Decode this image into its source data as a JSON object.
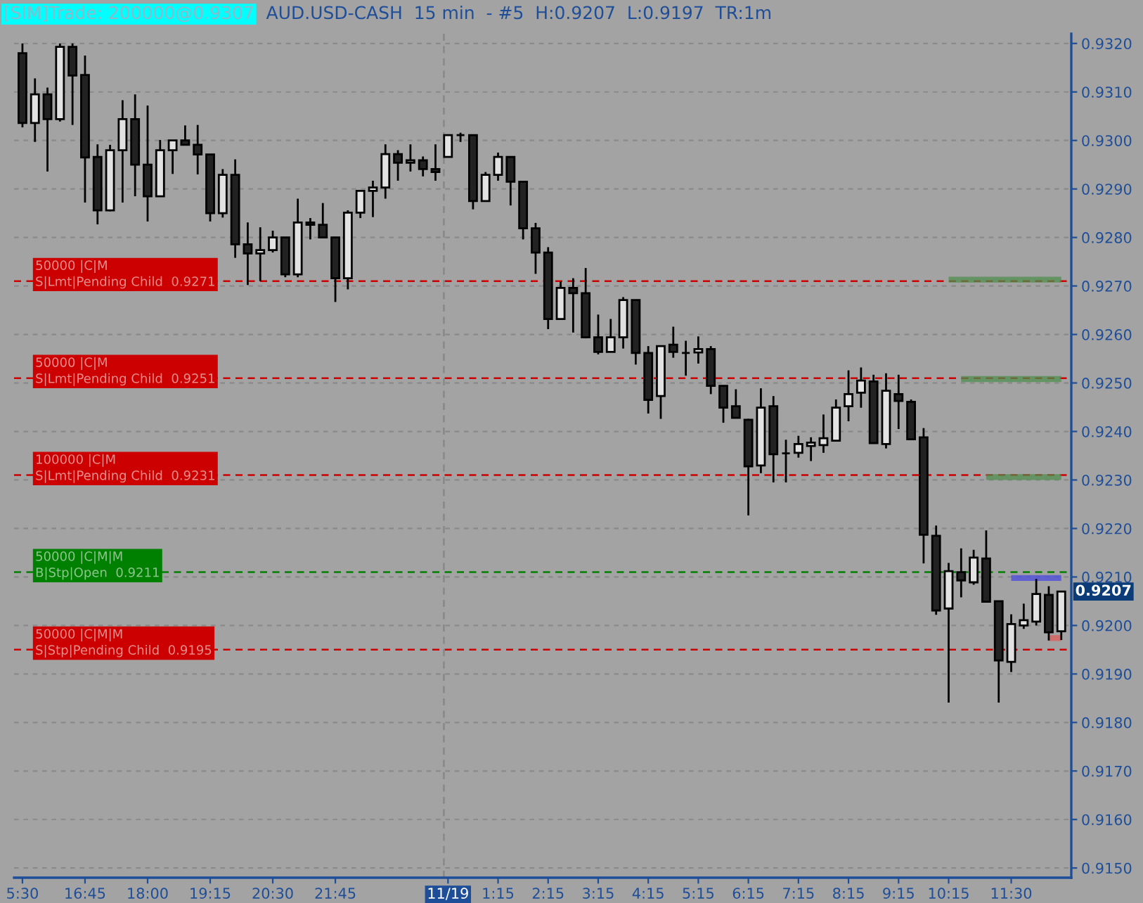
{
  "chart_data": {
    "type": "candlestick",
    "title": "[SIM]Trade: 200000@0.9307",
    "subtitle": "AUD.USD-CASH  15 min  - #5  H:0.9207  L:0.9197  TR:1m",
    "categories": [
      "5:30",
      null,
      null,
      null,
      null,
      "16:45",
      null,
      null,
      null,
      null,
      "18:00",
      null,
      null,
      null,
      null,
      "19:15",
      null,
      null,
      null,
      null,
      "20:30",
      null,
      null,
      null,
      null,
      "21:45",
      null,
      null,
      null,
      null,
      null,
      null,
      null,
      null,
      "11/19",
      null,
      null,
      null,
      "1:15",
      null,
      null,
      null,
      "2:15",
      null,
      null,
      null,
      "3:15",
      null,
      null,
      null,
      "4:15",
      null,
      null,
      null,
      "5:15",
      null,
      null,
      null,
      "6:15",
      null,
      null,
      null,
      "7:15",
      null,
      null,
      null,
      "8:15",
      null,
      null,
      null,
      "9:15",
      null,
      null,
      null,
      "10:15",
      null,
      null,
      null,
      null,
      "11:30",
      null,
      null,
      null,
      null
    ],
    "ohlc": [
      [
        0.9318,
        0.932,
        0.93027,
        0.93036
      ],
      [
        0.93036,
        0.93128,
        0.92997,
        0.93095
      ],
      [
        0.93095,
        0.93109,
        0.92936,
        0.93044
      ],
      [
        0.93044,
        0.932,
        0.93039,
        0.93193
      ],
      [
        0.93193,
        0.932,
        0.93032,
        0.93134
      ],
      [
        0.93135,
        0.93175,
        0.92872,
        0.92965
      ],
      [
        0.92966,
        0.92992,
        0.92827,
        0.92856
      ],
      [
        0.92856,
        0.92991,
        0.92854,
        0.9298
      ],
      [
        0.9298,
        0.93083,
        0.92872,
        0.93044
      ],
      [
        0.93044,
        0.93095,
        0.92885,
        0.9295
      ],
      [
        0.9295,
        0.93072,
        0.92833,
        0.92885
      ],
      [
        0.92885,
        0.93001,
        0.92885,
        0.9298
      ],
      [
        0.9298,
        0.93001,
        0.92931,
        0.93
      ],
      [
        0.93,
        0.93031,
        0.9299,
        0.92991
      ],
      [
        0.92991,
        0.93032,
        0.9293,
        0.92971
      ],
      [
        0.92971,
        0.92971,
        0.92833,
        0.9285
      ],
      [
        0.9285,
        0.92941,
        0.92841,
        0.92929
      ],
      [
        0.92929,
        0.92961,
        0.92758,
        0.92786
      ],
      [
        0.92786,
        0.92831,
        0.92702,
        0.92767
      ],
      [
        0.92767,
        0.92821,
        0.9271,
        0.92774
      ],
      [
        0.92774,
        0.92814,
        0.92769,
        0.928
      ],
      [
        0.928,
        0.928,
        0.92718,
        0.92724
      ],
      [
        0.92724,
        0.9288,
        0.92718,
        0.92831
      ],
      [
        0.92831,
        0.9284,
        0.92796,
        0.92826
      ],
      [
        0.92826,
        0.92871,
        0.928,
        0.928
      ],
      [
        0.928,
        0.928,
        0.92667,
        0.92716
      ],
      [
        0.92716,
        0.92856,
        0.92693,
        0.92851
      ],
      [
        0.92851,
        0.92896,
        0.9284,
        0.92896
      ],
      [
        0.92896,
        0.92917,
        0.92842,
        0.92903
      ],
      [
        0.92903,
        0.92992,
        0.9288,
        0.92972
      ],
      [
        0.92972,
        0.9298,
        0.92917,
        0.92954
      ],
      [
        0.92954,
        0.92992,
        0.92936,
        0.92959
      ],
      [
        0.92959,
        0.92967,
        0.92926,
        0.92941
      ],
      [
        0.92941,
        0.92992,
        0.92917,
        0.92935
      ],
      [
        0.92966,
        0.93011,
        0.92966,
        0.93011
      ],
      [
        0.93011,
        0.93016,
        0.92997,
        0.93011
      ],
      [
        0.93011,
        0.93011,
        0.92858,
        0.92875
      ],
      [
        0.92875,
        0.92935,
        0.92875,
        0.92929
      ],
      [
        0.92929,
        0.92975,
        0.92917,
        0.92966
      ],
      [
        0.92966,
        0.92966,
        0.92866,
        0.92915
      ],
      [
        0.92915,
        0.92915,
        0.92796,
        0.92819
      ],
      [
        0.92819,
        0.9283,
        0.92725,
        0.92769
      ],
      [
        0.92769,
        0.9278,
        0.92611,
        0.92632
      ],
      [
        0.92632,
        0.92709,
        0.92632,
        0.92696
      ],
      [
        0.92696,
        0.92716,
        0.92604,
        0.92685
      ],
      [
        0.92685,
        0.92737,
        0.92592,
        0.92594
      ],
      [
        0.92594,
        0.92641,
        0.92559,
        0.92564
      ],
      [
        0.92564,
        0.92632,
        0.92564,
        0.92594
      ],
      [
        0.92594,
        0.92677,
        0.92571,
        0.92671
      ],
      [
        0.92671,
        0.92671,
        0.92538,
        0.92562
      ],
      [
        0.92562,
        0.92576,
        0.92437,
        0.92465
      ],
      [
        0.92473,
        0.92576,
        0.92426,
        0.92576
      ],
      [
        0.92579,
        0.92616,
        0.92552,
        0.92564
      ],
      [
        0.92562,
        0.92587,
        0.92515,
        0.92562
      ],
      [
        0.92563,
        0.92596,
        0.9254,
        0.9257
      ],
      [
        0.9257,
        0.92576,
        0.92477,
        0.92494
      ],
      [
        0.92494,
        0.92494,
        0.92418,
        0.92449
      ],
      [
        0.92452,
        0.92487,
        0.92428,
        0.92428
      ],
      [
        0.92424,
        0.92426,
        0.92227,
        0.92328
      ],
      [
        0.9233,
        0.92489,
        0.92314,
        0.92449
      ],
      [
        0.92452,
        0.92473,
        0.92295,
        0.92353
      ],
      [
        0.92355,
        0.92383,
        0.92295,
        0.92355
      ],
      [
        0.92356,
        0.92391,
        0.92346,
        0.92374
      ],
      [
        0.9237,
        0.92388,
        0.92339,
        0.92377
      ],
      [
        0.92372,
        0.92435,
        0.92356,
        0.92386
      ],
      [
        0.92381,
        0.92466,
        0.92379,
        0.92449
      ],
      [
        0.92452,
        0.92526,
        0.92421,
        0.92477
      ],
      [
        0.9248,
        0.92532,
        0.92449,
        0.92505
      ],
      [
        0.92503,
        0.92517,
        0.92376,
        0.92376
      ],
      [
        0.92374,
        0.9252,
        0.92365,
        0.92484
      ],
      [
        0.92477,
        0.92517,
        0.92405,
        0.92463
      ],
      [
        0.92461,
        0.92466,
        0.92384,
        0.92384
      ],
      [
        0.92388,
        0.92407,
        0.92128,
        0.92187
      ],
      [
        0.92185,
        0.92206,
        0.92022,
        0.92031
      ],
      [
        0.92035,
        0.92129,
        0.91841,
        0.92112
      ],
      [
        0.9211,
        0.92159,
        0.92058,
        0.92093
      ],
      [
        0.92089,
        0.92156,
        0.92084,
        0.9214
      ],
      [
        0.92138,
        0.92196,
        0.92049,
        0.92049
      ],
      [
        0.9205,
        0.9205,
        0.91841,
        0.91928
      ],
      [
        0.91925,
        0.92023,
        0.91904,
        0.92003
      ],
      [
        0.92,
        0.92045,
        0.91993,
        0.92011
      ],
      [
        0.92008,
        0.92096,
        0.92,
        0.92065
      ],
      [
        0.92063,
        0.92081,
        0.91969,
        0.91986
      ],
      [
        0.91988,
        0.9207,
        0.9197,
        0.9207
      ]
    ],
    "series": [
      {
        "type": "line",
        "color": "#4f8f4f",
        "values": [
          null,
          null,
          null,
          null,
          null,
          null,
          null,
          null,
          null,
          null,
          null,
          null,
          null,
          null,
          null,
          null,
          null,
          null,
          null,
          null,
          null,
          null,
          null,
          null,
          null,
          null,
          null,
          null,
          null,
          null,
          null,
          null,
          null,
          null,
          null,
          null,
          null,
          null,
          null,
          null,
          null,
          null,
          null,
          null,
          null,
          null,
          null,
          null,
          null,
          null,
          null,
          null,
          null,
          null,
          null,
          null,
          null,
          null,
          null,
          null,
          null,
          null,
          null,
          null,
          null,
          null,
          null,
          null,
          null,
          null,
          null,
          null,
          null,
          null,
          0.92713,
          0.92713,
          0.92713,
          0.92713,
          0.92713,
          0.92713,
          0.92713,
          0.92713,
          0.92713,
          0.92713
        ]
      },
      {
        "type": "line",
        "color": "#4f8f4f",
        "values": [
          null,
          null,
          null,
          null,
          null,
          null,
          null,
          null,
          null,
          null,
          null,
          null,
          null,
          null,
          null,
          null,
          null,
          null,
          null,
          null,
          null,
          null,
          null,
          null,
          null,
          null,
          null,
          null,
          null,
          null,
          null,
          null,
          null,
          null,
          null,
          null,
          null,
          null,
          null,
          null,
          null,
          null,
          null,
          null,
          null,
          null,
          null,
          null,
          null,
          null,
          null,
          null,
          null,
          null,
          null,
          null,
          null,
          null,
          null,
          null,
          null,
          null,
          null,
          null,
          null,
          null,
          null,
          null,
          null,
          null,
          null,
          null,
          null,
          null,
          null,
          0.92508,
          0.92508,
          0.92508,
          0.92508,
          0.92508,
          0.92508,
          0.92508,
          0.92508,
          0.92508
        ]
      },
      {
        "type": "line",
        "color": "#4f8f4f",
        "values": [
          null,
          null,
          null,
          null,
          null,
          null,
          null,
          null,
          null,
          null,
          null,
          null,
          null,
          null,
          null,
          null,
          null,
          null,
          null,
          null,
          null,
          null,
          null,
          null,
          null,
          null,
          null,
          null,
          null,
          null,
          null,
          null,
          null,
          null,
          null,
          null,
          null,
          null,
          null,
          null,
          null,
          null,
          null,
          null,
          null,
          null,
          null,
          null,
          null,
          null,
          null,
          null,
          null,
          null,
          null,
          null,
          null,
          null,
          null,
          null,
          null,
          null,
          null,
          null,
          null,
          null,
          null,
          null,
          null,
          null,
          null,
          null,
          null,
          null,
          null,
          null,
          null,
          0.92306,
          0.92306,
          0.92306,
          0.92306,
          0.92306,
          0.92306,
          0.92306
        ]
      },
      {
        "type": "line",
        "color": "#4a4ae0",
        "values": [
          null,
          null,
          null,
          null,
          null,
          null,
          null,
          null,
          null,
          null,
          null,
          null,
          null,
          null,
          null,
          null,
          null,
          null,
          null,
          null,
          null,
          null,
          null,
          null,
          null,
          null,
          null,
          null,
          null,
          null,
          null,
          null,
          null,
          null,
          null,
          null,
          null,
          null,
          null,
          null,
          null,
          null,
          null,
          null,
          null,
          null,
          null,
          null,
          null,
          null,
          null,
          null,
          null,
          null,
          null,
          null,
          null,
          null,
          null,
          null,
          null,
          null,
          null,
          null,
          null,
          null,
          null,
          null,
          null,
          null,
          null,
          null,
          null,
          null,
          null,
          null,
          null,
          null,
          null,
          0.92098,
          0.92098,
          0.92098,
          0.92098,
          0.92098
        ]
      },
      {
        "type": "line",
        "color": "#e05a5a",
        "values": [
          null,
          null,
          null,
          null,
          null,
          null,
          null,
          null,
          null,
          null,
          null,
          null,
          null,
          null,
          null,
          null,
          null,
          null,
          null,
          null,
          null,
          null,
          null,
          null,
          null,
          null,
          null,
          null,
          null,
          null,
          null,
          null,
          null,
          null,
          null,
          null,
          null,
          null,
          null,
          null,
          null,
          null,
          null,
          null,
          null,
          null,
          null,
          null,
          null,
          null,
          null,
          null,
          null,
          null,
          null,
          null,
          null,
          null,
          null,
          null,
          null,
          null,
          null,
          null,
          null,
          null,
          null,
          null,
          null,
          null,
          null,
          null,
          null,
          null,
          null,
          null,
          null,
          null,
          null,
          null,
          null,
          null,
          0.91974,
          0.91974
        ]
      }
    ],
    "ref_lines": [
      {
        "axis": "y",
        "value": 0.9271,
        "label": "50000 |C|M\nS|Lmt|Pending Child  0.9271",
        "color": "#cc0000",
        "line_style": "dashed"
      },
      {
        "axis": "y",
        "value": 0.9251,
        "label": "50000 |C|M\nS|Lmt|Pending Child  0.9251",
        "color": "#cc0000",
        "line_style": "dashed"
      },
      {
        "axis": "y",
        "value": 0.9231,
        "label": "100000 |C|M\nS|Lmt|Pending Child  0.9231",
        "color": "#cc0000",
        "line_style": "dashed"
      },
      {
        "axis": "y",
        "value": 0.9211,
        "label": "50000 |C|M|M\nB|Stp|Open  0.9211",
        "color": "#008000",
        "line_style": "dashed"
      },
      {
        "axis": "y",
        "value": 0.9195,
        "label": "50000 |C|M|M\nS|Stp|Pending Child  0.9195",
        "color": "#cc0000",
        "line_style": "dashed"
      },
      {
        "axis": "x",
        "value": "11/19",
        "color": "#888888",
        "line_style": "dashed"
      }
    ],
    "annotations": [
      "0.9207"
    ],
    "ylim": [
      0.9148,
      0.9322
    ],
    "yticks": [
      {
        "value": 0.915,
        "label": "0.9150"
      },
      {
        "value": 0.916,
        "label": "0.9160"
      },
      {
        "value": 0.917,
        "label": "0.9170"
      },
      {
        "value": 0.918,
        "label": "0.9180"
      },
      {
        "value": 0.919,
        "label": "0.9190"
      },
      {
        "value": 0.92,
        "label": "0.9200"
      },
      {
        "value": 0.921,
        "label": "0.9210"
      },
      {
        "value": 0.922,
        "label": "0.9220"
      },
      {
        "value": 0.923,
        "label": "0.9230"
      },
      {
        "value": 0.924,
        "label": "0.9240"
      },
      {
        "value": 0.925,
        "label": "0.9250"
      },
      {
        "value": 0.926,
        "label": "0.9260"
      },
      {
        "value": 0.927,
        "label": "0.9270"
      },
      {
        "value": 0.928,
        "label": "0.9280"
      },
      {
        "value": 0.929,
        "label": "0.9290"
      },
      {
        "value": 0.93,
        "label": "0.9300"
      },
      {
        "value": 0.931,
        "label": "0.9310"
      },
      {
        "value": 0.932,
        "label": "0.9320"
      }
    ],
    "grid": "y"
  }
}
